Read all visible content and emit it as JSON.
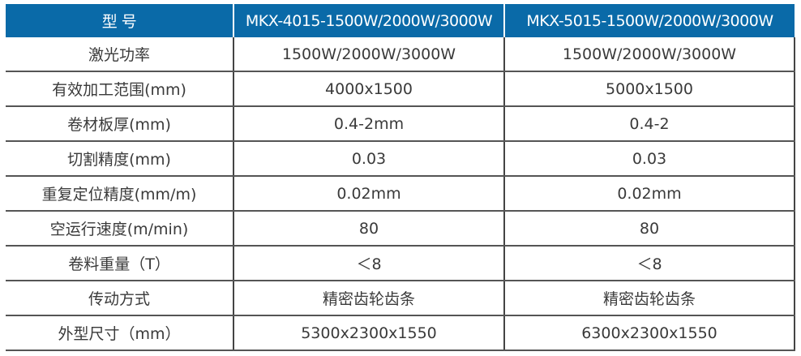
{
  "header": [
    "型 号",
    "MKX-4015-1500W/2000W/3000W",
    "MKX-5015-1500W/2000W/3000W"
  ],
  "rows": [
    [
      "激光功率",
      "1500W/2000W/3000W",
      "1500W/2000W/3000W"
    ],
    [
      "有效加工范围(mm)",
      "4000x1500",
      "5000x1500"
    ],
    [
      "卷材板厚(mm)",
      "0.4-2mm",
      "0.4-2"
    ],
    [
      "切割精度(mm)",
      "0.03",
      "0.03"
    ],
    [
      "重复定位精度(mm/m)",
      "0.02mm",
      "0.02mm"
    ],
    [
      "空运行速度(m/min)",
      "80",
      "80"
    ],
    [
      "卷料重量（T）",
      "＜8",
      "＜8"
    ],
    [
      "传动方式",
      "精密齿轮齿条",
      "精密齿轮齿条"
    ],
    [
      "外型尺寸（mm）",
      "5300x2300x1550",
      "6300x2300x1550"
    ]
  ],
  "colors": {
    "header_bg": "#0a6aa8"
  }
}
